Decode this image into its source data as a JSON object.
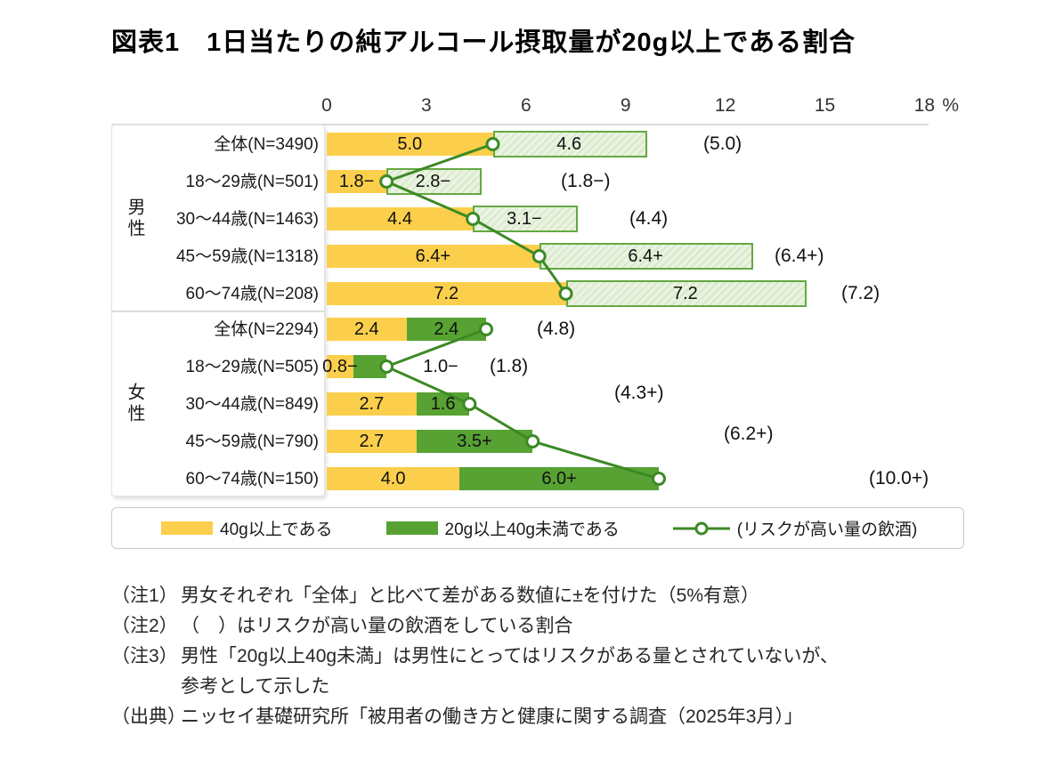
{
  "title": "図表1　1日当たりの純アルコール摂取量が20g以上である割合",
  "colors": {
    "bar_40g": "#FBCF4B",
    "bar_20g_solid": "#57A233",
    "bar_20g_hatch_bg": "#EAF3E1",
    "bar_20g_hatch_stripe": "#D7E9C9",
    "bar_20g_hatch_border": "#63A843",
    "risk_line": "#3C8A26",
    "grid": "#DCDCDC"
  },
  "chart_data": {
    "type": "bar",
    "orientation": "horizontal-stacked-with-line-markers",
    "unit": "%",
    "axis_ticks": [
      0,
      3,
      6,
      9,
      12,
      15,
      18
    ],
    "axis_max": 18,
    "grid": "off",
    "groups": [
      {
        "label": "男性",
        "green_style": "hatched",
        "marker_at": "bar40_end",
        "rows": [
          {
            "category": "全体(N=3490)",
            "v40": 5.0,
            "v40_label": "5.0",
            "v20": 4.6,
            "v20_label": "4.6",
            "risk": 5.0,
            "risk_label": "(5.0)"
          },
          {
            "category": "18～29歳(N=501)",
            "v40": 1.8,
            "v40_label": "1.8−",
            "v20": 2.8,
            "v20_label": "2.8−",
            "risk": 1.8,
            "risk_label": "(1.8−)"
          },
          {
            "category": "30～44歳(N=1463)",
            "v40": 4.4,
            "v40_label": "4.4",
            "v20": 3.1,
            "v20_label": "3.1−",
            "risk": 4.4,
            "risk_label": "(4.4)"
          },
          {
            "category": "45～59歳(N=1318)",
            "v40": 6.4,
            "v40_label": "6.4+",
            "v20": 6.4,
            "v20_label": "6.4+",
            "risk": 6.4,
            "risk_label": "(6.4+)"
          },
          {
            "category": "60～74歳(N=208)",
            "v40": 7.2,
            "v40_label": "7.2",
            "v20": 7.2,
            "v20_label": "7.2",
            "risk": 7.2,
            "risk_label": "(7.2)"
          }
        ]
      },
      {
        "label": "女性",
        "green_style": "solid",
        "marker_at": "total_end",
        "rows": [
          {
            "category": "全体(N=2294)",
            "v40": 2.4,
            "v40_label": "2.4",
            "v20": 2.4,
            "v20_label": "2.4",
            "risk": 4.8,
            "risk_label": "(4.8)"
          },
          {
            "category": "18～29歳(N=505)",
            "v40": 0.8,
            "v40_label": "0.8−",
            "v20": 1.0,
            "v20_label": "1.0−",
            "risk": 1.8,
            "risk_label": "(1.8)",
            "green_label_outside": true
          },
          {
            "category": "30～44歳(N=849)",
            "v40": 2.7,
            "v40_label": "2.7",
            "v20": 1.6,
            "v20_label": "1.6",
            "risk": 4.3,
            "risk_label": "(4.3+)"
          },
          {
            "category": "45～59歳(N=790)",
            "v40": 2.7,
            "v40_label": "2.7",
            "v20": 3.5,
            "v20_label": "3.5+",
            "risk": 6.2,
            "risk_label": "(6.2+)"
          },
          {
            "category": "60～74歳(N=150)",
            "v40": 4.0,
            "v40_label": "4.0",
            "v20": 6.0,
            "v20_label": "6.0+",
            "risk": 10.0,
            "risk_label": "(10.0+)"
          }
        ]
      }
    ]
  },
  "legend": {
    "items": [
      {
        "label": "40g以上である"
      },
      {
        "label": "20g以上40g未満である"
      },
      {
        "label": "(リスクが高い量の飲酒)"
      }
    ]
  },
  "notes": [
    {
      "label": "（注1）",
      "text": "男女それぞれ「全体」と比べて差がある数値に±を付けた（5%有意）"
    },
    {
      "label": "（注2）",
      "text": "（　）はリスクが高い量の飲酒をしている割合"
    },
    {
      "label": "（注3）",
      "text": "男性「20g以上40g未満」は男性にとってはリスクがある量とされていないが、"
    },
    {
      "label": "",
      "text": "参考として示した"
    },
    {
      "label": "（出典）",
      "text": "ニッセイ基礎研究所「被用者の働き方と健康に関する調査（2025年3月）」"
    }
  ]
}
